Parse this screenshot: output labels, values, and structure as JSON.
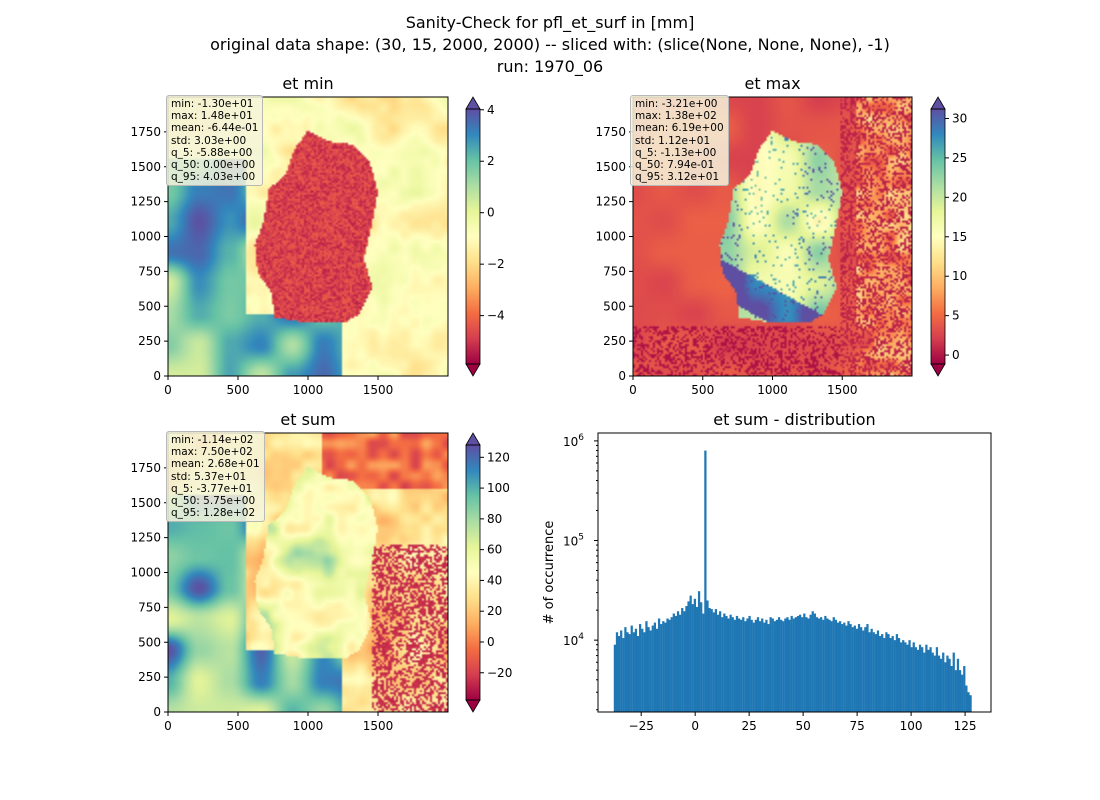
{
  "figure": {
    "title_lines": [
      "Sanity-Check for pfl_et_surf in [mm]",
      "original data shape: (30, 15, 2000, 2000) -- sliced with: (slice(None, None, None), -1)",
      "run: 1970_06"
    ]
  },
  "colors": {
    "spectral": [
      "#9e0142",
      "#d53e4f",
      "#f46d43",
      "#fdae61",
      "#fee08b",
      "#ffffbf",
      "#e6f598",
      "#abdda4",
      "#66c2a5",
      "#3288bd",
      "#5e4fa2"
    ],
    "hist_bar": "#1f77b4"
  },
  "chart_data": [
    {
      "type": "heatmap",
      "name": "et_min",
      "title": "et min",
      "x_ticks": [
        "0",
        "500",
        "1000",
        "1500"
      ],
      "y_ticks": [
        "0",
        "250",
        "500",
        "750",
        "1000",
        "1250",
        "1500",
        "1750"
      ],
      "xlim": [
        0,
        2000
      ],
      "ylim": [
        0,
        2000
      ],
      "colorbar": {
        "vmin": -5.88,
        "vmax": 4.03,
        "extend": "both",
        "ticks": [
          4,
          2,
          0,
          -2,
          -4
        ],
        "tick_labels": [
          "4",
          "2",
          "0",
          "−2",
          "−4"
        ]
      },
      "stats": [
        "min: -1.30e+01",
        "max: 1.48e+01",
        "mean: -6.44e-01",
        "std: 3.03e+00",
        "q_5: -5.88e+00",
        "q_50: 0.00e+00",
        "q_95: 4.03e+00"
      ]
    },
    {
      "type": "heatmap",
      "name": "et_max",
      "title": "et max",
      "x_ticks": [
        "0",
        "500",
        "1000",
        "1500"
      ],
      "y_ticks": [
        "0",
        "250",
        "500",
        "750",
        "1000",
        "1250",
        "1500",
        "1750"
      ],
      "xlim": [
        0,
        2000
      ],
      "ylim": [
        0,
        2000
      ],
      "colorbar": {
        "vmin": -1.13,
        "vmax": 31.2,
        "extend": "both",
        "ticks": [
          30,
          25,
          20,
          15,
          10,
          5,
          0
        ],
        "tick_labels": [
          "30",
          "25",
          "20",
          "15",
          "10",
          "5",
          "0"
        ]
      },
      "stats": [
        "min: -3.21e+00",
        "max: 1.38e+02",
        "mean: 6.19e+00",
        "std: 1.12e+01",
        "q_5: -1.13e+00",
        "q_50: 7.94e-01",
        "q_95: 3.12e+01"
      ]
    },
    {
      "type": "heatmap",
      "name": "et_sum",
      "title": "et sum",
      "x_ticks": [
        "0",
        "500",
        "1000",
        "1500"
      ],
      "y_ticks": [
        "0",
        "250",
        "500",
        "750",
        "1000",
        "1250",
        "1500",
        "1750"
      ],
      "xlim": [
        0,
        2000
      ],
      "ylim": [
        0,
        2000
      ],
      "colorbar": {
        "vmin": -37.7,
        "vmax": 128,
        "extend": "both",
        "ticks": [
          120,
          100,
          80,
          60,
          40,
          20,
          0,
          -20
        ],
        "tick_labels": [
          "120",
          "100",
          "80",
          "60",
          "40",
          "20",
          "0",
          "−20"
        ]
      },
      "stats": [
        "min: -1.14e+02",
        "max: 7.50e+02",
        "mean: 2.68e+01",
        "std: 5.37e+01",
        "q_5: -3.77e+01",
        "q_50: 5.75e+00",
        "q_95: 1.28e+02"
      ]
    },
    {
      "type": "bar",
      "name": "et_sum_distribution",
      "title": "et sum - distribution",
      "ylabel": "# of occurrence",
      "yscale": "log",
      "xlim": [
        -45,
        137
      ],
      "ylim": [
        1900,
        1200000
      ],
      "x_ticks": [
        -25,
        0,
        25,
        50,
        75,
        100,
        125
      ],
      "x_tick_labels": [
        "−25",
        "0",
        "25",
        "50",
        "75",
        "100",
        "125"
      ],
      "y_ticks": [
        10000,
        100000,
        1000000
      ],
      "y_tick_labels": [
        "10",
        "10",
        "10"
      ],
      "y_tick_exponents": [
        "4",
        "5",
        "6"
      ],
      "bin_range": [
        -37.7,
        128
      ],
      "counts": [
        9000,
        12000,
        11000,
        12500,
        10500,
        13500,
        12000,
        11500,
        14000,
        12000,
        13000,
        11000,
        14500,
        13000,
        12000,
        15500,
        13500,
        12500,
        14000,
        15000,
        13000,
        16500,
        14500,
        15500,
        15000,
        16500,
        16000,
        17000,
        18500,
        17500,
        19500,
        18000,
        21000,
        19500,
        22000,
        24500,
        28000,
        23000,
        26000,
        21500,
        31000,
        24000,
        18500,
        800000,
        25000,
        21000,
        20500,
        19000,
        20500,
        18000,
        19500,
        17000,
        18500,
        17500,
        16500,
        18000,
        17000,
        16000,
        17500,
        16500,
        16000,
        17000,
        15500,
        16500,
        17500,
        16000,
        15000,
        16000,
        17000,
        15500,
        16500,
        15000,
        16000,
        14500,
        17000,
        16500,
        15500,
        16000,
        17000,
        16000,
        15500,
        16500,
        17000,
        16000,
        17500,
        16500,
        17000,
        17500,
        18000,
        17000,
        18500,
        17000,
        16500,
        18000,
        19500,
        18500,
        17000,
        16500,
        17000,
        16000,
        17500,
        16500,
        16000,
        15500,
        17000,
        16000,
        15000,
        15500,
        14500,
        15000,
        14000,
        15500,
        14500,
        13500,
        14000,
        13000,
        14500,
        13500,
        12500,
        13500,
        14500,
        12000,
        13000,
        12000,
        11500,
        12500,
        11000,
        11500,
        10500,
        12000,
        11500,
        10500,
        11000,
        10000,
        11500,
        10500,
        9500,
        10000,
        9500,
        9000,
        10000,
        8500,
        9500,
        8500,
        8000,
        9000,
        8500,
        7500,
        9000,
        8000,
        8500,
        7500,
        7000,
        8500,
        7000,
        6500,
        7500,
        6000,
        7000,
        6500,
        5500,
        7500,
        5000,
        6500,
        5000,
        4500,
        5500,
        3500,
        3000,
        2800
      ]
    }
  ]
}
